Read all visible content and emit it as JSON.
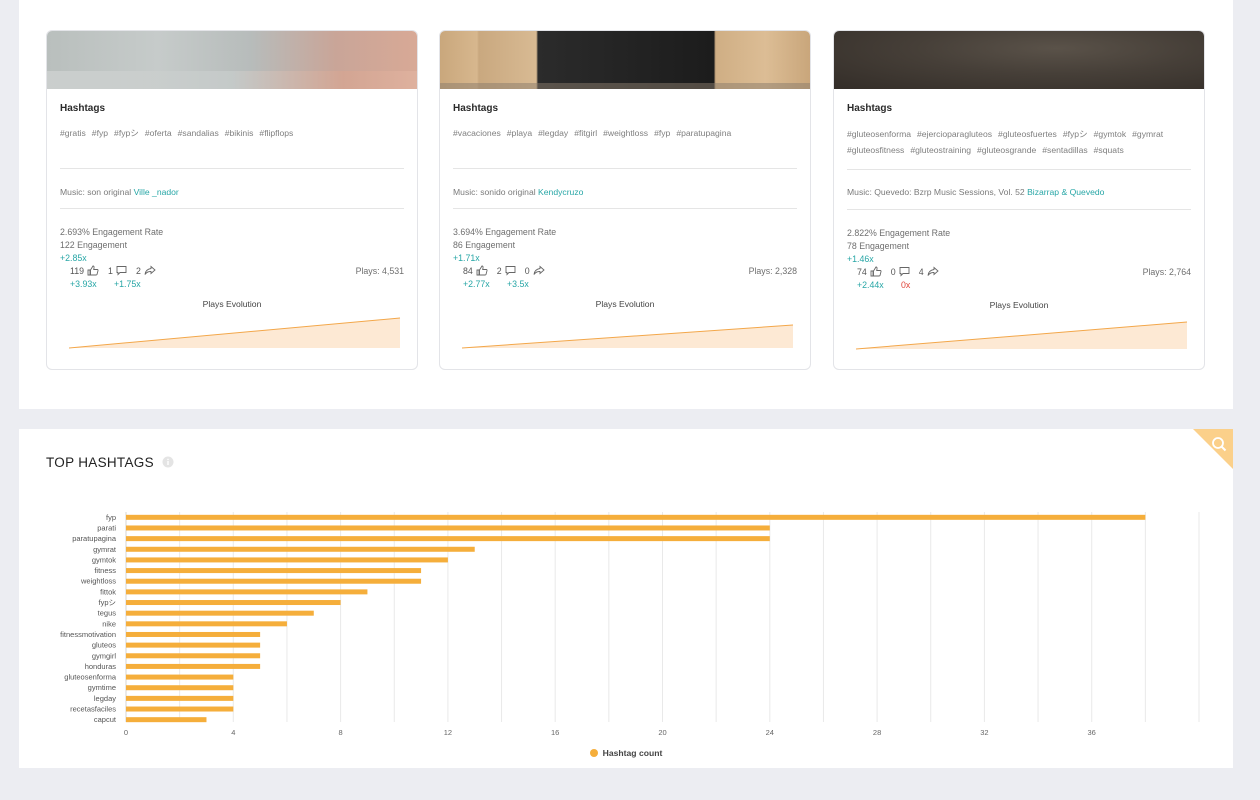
{
  "cards": [
    {
      "hashtags_title": "Hashtags",
      "hashtags": [
        "#gratis",
        "#fyp",
        "#fypシ",
        "#oferta",
        "#sandalias",
        "#bikinis",
        "#flipflops"
      ],
      "music_prefix": "Music: son original",
      "music_artist": "Ville _nador",
      "engagement_rate": "2.693% Engagement Rate",
      "engagement": "122 Engagement",
      "engagement_mult": "+2.85x",
      "likes": "119",
      "comments": "1",
      "shares": "2",
      "likes_mult": "+3.93x",
      "comments_mult": "+1.75x",
      "plays": "Plays: 4,531",
      "evolution_title": "Plays Evolution"
    },
    {
      "hashtags_title": "Hashtags",
      "hashtags": [
        "#vacaciones",
        "#playa",
        "#legday",
        "#fitgirl",
        "#weightloss",
        "#fyp",
        "#paratupagina"
      ],
      "music_prefix": "Music: sonido original",
      "music_artist": "Kendycruzo",
      "engagement_rate": "3.694% Engagement Rate",
      "engagement": "86 Engagement",
      "engagement_mult": "+1.71x",
      "likes": "84",
      "comments": "2",
      "shares": "0",
      "likes_mult": "+2.77x",
      "comments_mult": "+3.5x",
      "plays": "Plays: 2,328",
      "evolution_title": "Plays Evolution"
    },
    {
      "hashtags_title": "Hashtags",
      "hashtags": [
        "#gluteosenforma",
        "#ejercioparagluteos",
        "#gluteosfuertes",
        "#fypシ",
        "#gymtok",
        "#gymrat",
        "#gluteosfitness",
        "#gluteostraining",
        "#gluteosgrande",
        "#sentadillas",
        "#squats"
      ],
      "music_prefix": "Music: Quevedo: Bzrp Music Sessions, Vol. 52",
      "music_artist": "Bizarrap & Quevedo",
      "engagement_rate": "2.822% Engagement Rate",
      "engagement": "78 Engagement",
      "engagement_mult": "+1.46x",
      "likes": "74",
      "comments": "0",
      "shares": "4",
      "likes_mult": "+2.44x",
      "comments_mult": "0x",
      "plays": "Plays: 2,764",
      "evolution_title": "Plays Evolution"
    }
  ],
  "top_hashtags": {
    "title": "TOP HASHTAGS",
    "legend_label": "Hashtag count",
    "bar_color": "#f5ae3b",
    "icons": [
      "info-icon",
      "search-icon"
    ]
  },
  "chart_data": {
    "type": "bar",
    "orientation": "horizontal",
    "categories": [
      "fyp",
      "parati",
      "paratupagina",
      "gymrat",
      "gymtok",
      "fitness",
      "weightloss",
      "fittok",
      "fypシ",
      "tegus",
      "nike",
      "fitnessmotivation",
      "gluteos",
      "gymgirl",
      "honduras",
      "gluteosenforma",
      "gymtime",
      "legday",
      "recetasfaciles",
      "capcut"
    ],
    "series": [
      {
        "name": "Hashtag count",
        "values": [
          38,
          24,
          24,
          13,
          12,
          11,
          11,
          9,
          8,
          7,
          6,
          5,
          5,
          5,
          5,
          4,
          4,
          4,
          4,
          3
        ]
      }
    ],
    "xlim": [
      0,
      40
    ],
    "x_ticks": [
      0,
      4,
      8,
      12,
      16,
      20,
      24,
      28,
      32,
      36
    ],
    "grid": true,
    "legend": "bottom"
  }
}
